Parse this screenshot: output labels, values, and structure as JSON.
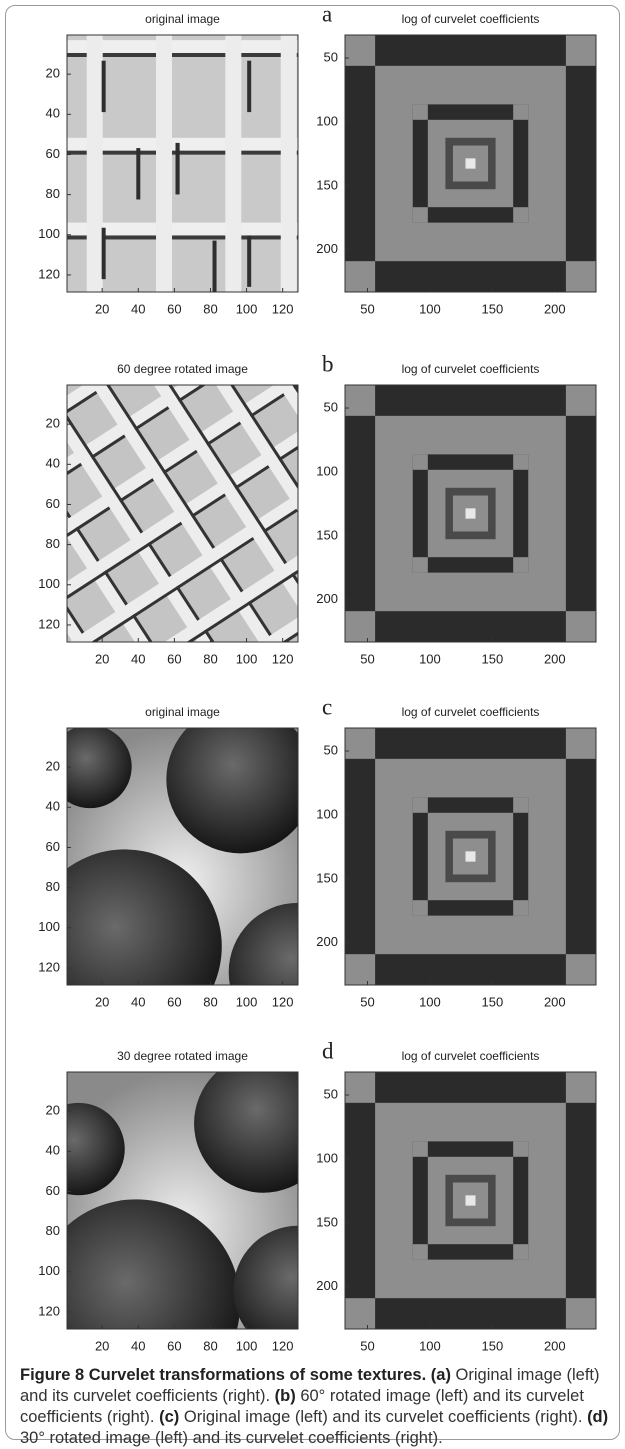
{
  "panels": [
    {
      "letter": "a",
      "left": {
        "title": "original image",
        "xlim": [
          0.5,
          128.5
        ],
        "ylim": [
          0.5,
          128.5
        ],
        "xticks": [
          20,
          40,
          60,
          80,
          100,
          120
        ],
        "yticks": [
          20,
          40,
          60,
          80,
          100,
          120
        ]
      },
      "right": {
        "title": "log of curvelet coefficients",
        "xlim": [
          32,
          233
        ],
        "ylim": [
          32,
          233
        ],
        "xticks": [
          50,
          100,
          150,
          200
        ],
        "yticks": [
          50,
          100,
          150,
          200
        ]
      }
    },
    {
      "letter": "b",
      "left": {
        "title": "60 degree rotated image",
        "xlim": [
          0.5,
          128.5
        ],
        "ylim": [
          0.5,
          128.5
        ],
        "xticks": [
          20,
          40,
          60,
          80,
          100,
          120
        ],
        "yticks": [
          20,
          40,
          60,
          80,
          100,
          120
        ]
      },
      "right": {
        "title": "log of curvelet coefficients",
        "xlim": [
          32,
          233
        ],
        "ylim": [
          32,
          233
        ],
        "xticks": [
          50,
          100,
          150,
          200
        ],
        "yticks": [
          50,
          100,
          150,
          200
        ]
      }
    },
    {
      "letter": "c",
      "left": {
        "title": "original image",
        "xlim": [
          0.5,
          128.5
        ],
        "ylim": [
          0.5,
          128.5
        ],
        "xticks": [
          20,
          40,
          60,
          80,
          100,
          120
        ],
        "yticks": [
          20,
          40,
          60,
          80,
          100,
          120
        ]
      },
      "right": {
        "title": "log of curvelet coefficients",
        "xlim": [
          32,
          233
        ],
        "ylim": [
          32,
          233
        ],
        "xticks": [
          50,
          100,
          150,
          200
        ],
        "yticks": [
          50,
          100,
          150,
          200
        ]
      }
    },
    {
      "letter": "d",
      "left": {
        "title": "30 degree rotated image",
        "xlim": [
          0.5,
          128.5
        ],
        "ylim": [
          0.5,
          128.5
        ],
        "xticks": [
          20,
          40,
          60,
          80,
          100,
          120
        ],
        "yticks": [
          20,
          40,
          60,
          80,
          100,
          120
        ]
      },
      "right": {
        "title": "log of curvelet coefficients",
        "xlim": [
          32,
          233
        ],
        "ylim": [
          32,
          233
        ],
        "xticks": [
          50,
          100,
          150,
          200
        ],
        "yticks": [
          50,
          100,
          150,
          200
        ]
      }
    }
  ],
  "caption": {
    "label": "Figure 8 Curvelet transformations of some textures.",
    "parts": [
      {
        "label": "(a)",
        "text": "Original image (left) and its curvelet coefficients (right)."
      },
      {
        "label": "(b)",
        "text": "60° rotated image (left) and its curvelet coefficients (right)."
      },
      {
        "label": "(c)",
        "text": "Original image (left) and its curvelet coefficients (right)."
      },
      {
        "label": "(d)",
        "text": "30° rotated image (left) and its curvelet coefficients (right)."
      }
    ]
  }
}
